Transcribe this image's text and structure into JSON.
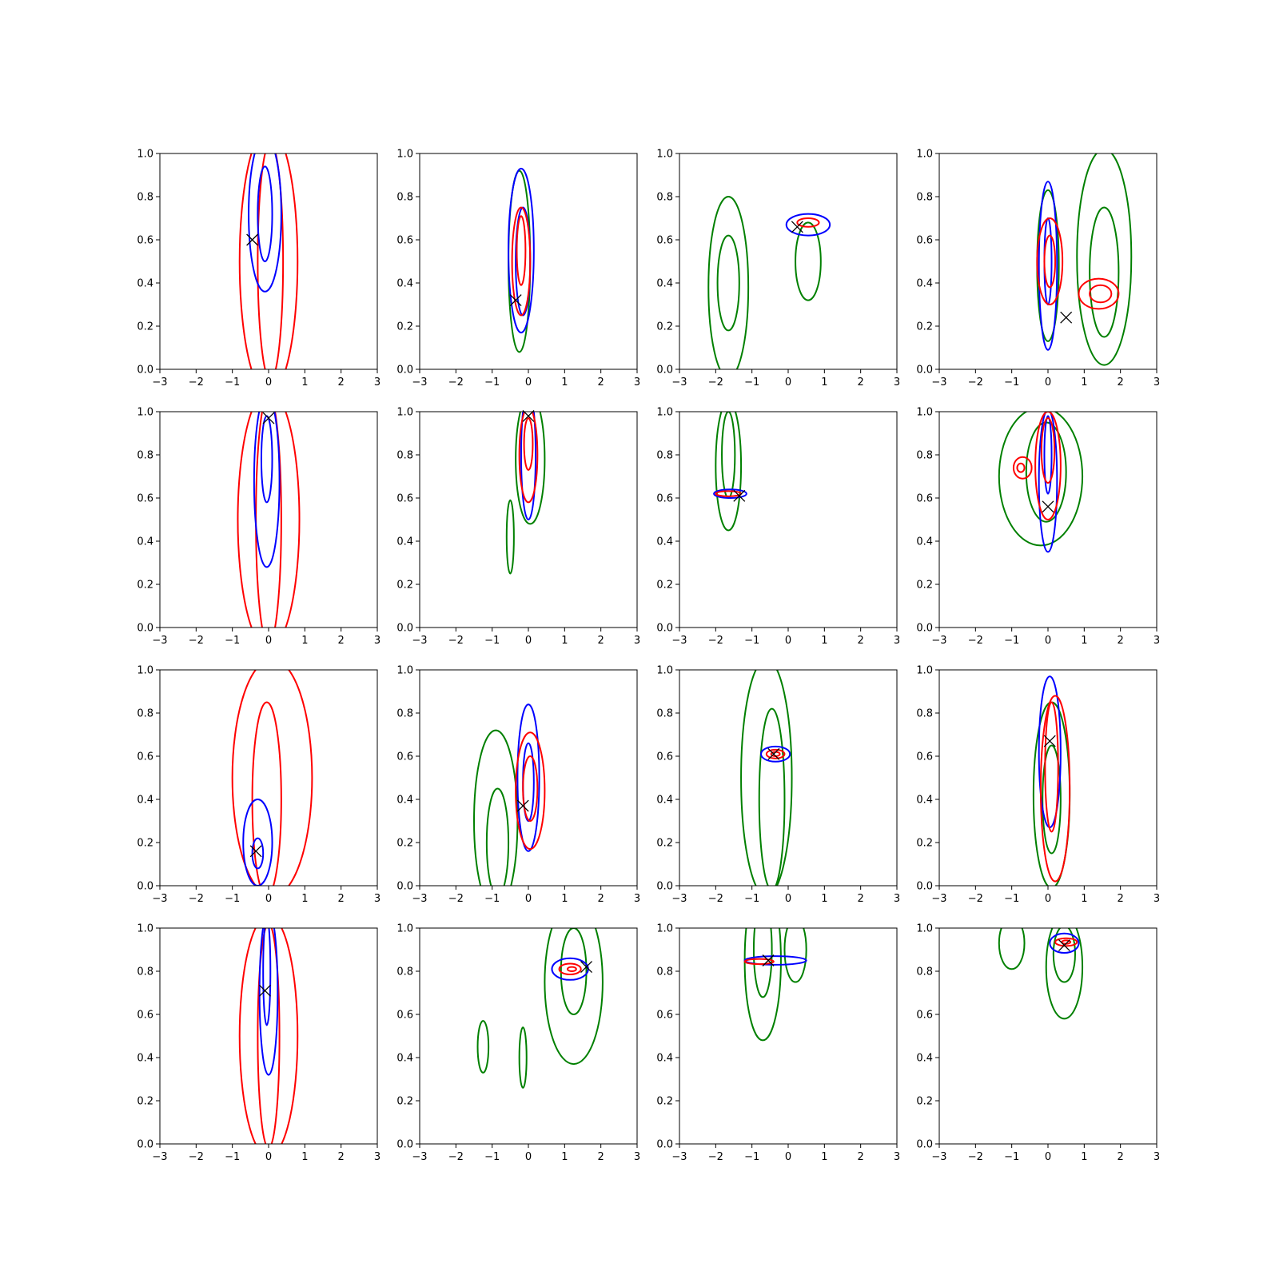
{
  "chart_data": {
    "type": "contour",
    "layout": {
      "rows": 4,
      "cols": 4
    },
    "xlim": [
      -3,
      3
    ],
    "ylim": [
      0,
      1
    ],
    "xticks": [
      -3,
      -2,
      -1,
      0,
      1,
      2,
      3
    ],
    "yticks": [
      0.0,
      0.2,
      0.4,
      0.6,
      0.8,
      1.0
    ],
    "ytick_labels": [
      "0.0",
      "0.2",
      "0.4",
      "0.6",
      "0.8",
      "1.0"
    ],
    "grid": false,
    "colors": {
      "blue": "#0000ff",
      "red": "#ff0000",
      "green": "#008000",
      "marker": "#000000"
    },
    "panels": [
      {
        "marker": [
          -0.45,
          0.6
        ],
        "contours": [
          {
            "color": "red",
            "cx": 0.0,
            "cy": 0.5,
            "rx": 0.8,
            "ry": 0.62
          },
          {
            "color": "red",
            "cx": 0.05,
            "cy": 0.5,
            "rx": 0.35,
            "ry": 0.55
          },
          {
            "color": "blue",
            "cx": -0.1,
            "cy": 0.72,
            "rx": 0.45,
            "ry": 0.36
          },
          {
            "color": "blue",
            "cx": -0.1,
            "cy": 0.72,
            "rx": 0.2,
            "ry": 0.22
          }
        ]
      },
      {
        "marker": [
          -0.35,
          0.32
        ],
        "contours": [
          {
            "color": "green",
            "cx": -0.25,
            "cy": 0.5,
            "rx": 0.3,
            "ry": 0.42
          },
          {
            "color": "blue",
            "cx": -0.2,
            "cy": 0.55,
            "rx": 0.35,
            "ry": 0.38
          },
          {
            "color": "blue",
            "cx": -0.15,
            "cy": 0.5,
            "rx": 0.2,
            "ry": 0.25
          },
          {
            "color": "red",
            "cx": -0.2,
            "cy": 0.5,
            "rx": 0.25,
            "ry": 0.25
          },
          {
            "color": "red",
            "cx": -0.2,
            "cy": 0.55,
            "rx": 0.12,
            "ry": 0.16
          }
        ]
      },
      {
        "marker": [
          0.25,
          0.66
        ],
        "contours": [
          {
            "color": "green",
            "cx": -1.65,
            "cy": 0.38,
            "rx": 0.55,
            "ry": 0.42
          },
          {
            "color": "green",
            "cx": -1.65,
            "cy": 0.4,
            "rx": 0.3,
            "ry": 0.22
          },
          {
            "color": "green",
            "cx": 0.55,
            "cy": 0.5,
            "rx": 0.35,
            "ry": 0.18
          },
          {
            "color": "blue",
            "cx": 0.55,
            "cy": 0.67,
            "rx": 0.6,
            "ry": 0.05
          },
          {
            "color": "red",
            "cx": 0.55,
            "cy": 0.68,
            "rx": 0.3,
            "ry": 0.02
          }
        ]
      },
      {
        "marker": [
          0.5,
          0.24
        ],
        "contours": [
          {
            "color": "green",
            "cx": 1.55,
            "cy": 0.52,
            "rx": 0.75,
            "ry": 0.5
          },
          {
            "color": "green",
            "cx": 1.55,
            "cy": 0.45,
            "rx": 0.4,
            "ry": 0.3
          },
          {
            "color": "green",
            "cx": 0.0,
            "cy": 0.48,
            "rx": 0.3,
            "ry": 0.35
          },
          {
            "color": "blue",
            "cx": 0.0,
            "cy": 0.48,
            "rx": 0.25,
            "ry": 0.39
          },
          {
            "color": "blue",
            "cx": 0.0,
            "cy": 0.5,
            "rx": 0.1,
            "ry": 0.2
          },
          {
            "color": "red",
            "cx": 0.05,
            "cy": 0.5,
            "rx": 0.35,
            "ry": 0.2
          },
          {
            "color": "red",
            "cx": 0.05,
            "cy": 0.5,
            "rx": 0.15,
            "ry": 0.12
          },
          {
            "color": "red",
            "cx": 1.4,
            "cy": 0.35,
            "rx": 0.55,
            "ry": 0.07
          },
          {
            "color": "red",
            "cx": 1.45,
            "cy": 0.35,
            "rx": 0.3,
            "ry": 0.04
          }
        ]
      },
      {
        "marker": [
          0.0,
          0.97
        ],
        "contours": [
          {
            "color": "red",
            "cx": 0.0,
            "cy": 0.5,
            "rx": 0.85,
            "ry": 0.6
          },
          {
            "color": "red",
            "cx": 0.0,
            "cy": 0.5,
            "rx": 0.35,
            "ry": 0.58
          },
          {
            "color": "blue",
            "cx": -0.05,
            "cy": 0.68,
            "rx": 0.35,
            "ry": 0.4
          },
          {
            "color": "blue",
            "cx": -0.05,
            "cy": 0.78,
            "rx": 0.15,
            "ry": 0.2
          }
        ]
      },
      {
        "marker": [
          0.0,
          0.98
        ],
        "contours": [
          {
            "color": "green",
            "cx": 0.05,
            "cy": 0.78,
            "rx": 0.4,
            "ry": 0.3
          },
          {
            "color": "green",
            "cx": -0.5,
            "cy": 0.42,
            "rx": 0.1,
            "ry": 0.17
          },
          {
            "color": "blue",
            "cx": 0.0,
            "cy": 0.8,
            "rx": 0.2,
            "ry": 0.3
          },
          {
            "color": "red",
            "cx": 0.0,
            "cy": 0.8,
            "rx": 0.25,
            "ry": 0.22
          },
          {
            "color": "red",
            "cx": 0.0,
            "cy": 0.85,
            "rx": 0.12,
            "ry": 0.12
          }
        ]
      },
      {
        "marker": [
          -1.35,
          0.61
        ],
        "contours": [
          {
            "color": "green",
            "cx": -1.65,
            "cy": 0.75,
            "rx": 0.35,
            "ry": 0.3
          },
          {
            "color": "green",
            "cx": -1.65,
            "cy": 0.8,
            "rx": 0.18,
            "ry": 0.2
          },
          {
            "color": "blue",
            "cx": -1.6,
            "cy": 0.62,
            "rx": 0.45,
            "ry": 0.02
          },
          {
            "color": "red",
            "cx": -1.65,
            "cy": 0.62,
            "rx": 0.35,
            "ry": 0.012
          }
        ]
      },
      {
        "marker": [
          0.0,
          0.56
        ],
        "contours": [
          {
            "color": "green",
            "cx": -0.2,
            "cy": 0.7,
            "rx": 1.15,
            "ry": 0.32
          },
          {
            "color": "green",
            "cx": -0.05,
            "cy": 0.72,
            "rx": 0.55,
            "ry": 0.23
          },
          {
            "color": "blue",
            "cx": 0.0,
            "cy": 0.68,
            "rx": 0.25,
            "ry": 0.33
          },
          {
            "color": "blue",
            "cx": 0.0,
            "cy": 0.8,
            "rx": 0.1,
            "ry": 0.18
          },
          {
            "color": "red",
            "cx": 0.0,
            "cy": 0.75,
            "rx": 0.35,
            "ry": 0.25
          },
          {
            "color": "red",
            "cx": 0.0,
            "cy": 0.82,
            "rx": 0.18,
            "ry": 0.15
          },
          {
            "color": "red",
            "cx": -0.7,
            "cy": 0.74,
            "rx": 0.25,
            "ry": 0.05
          },
          {
            "color": "red",
            "cx": -0.75,
            "cy": 0.74,
            "rx": 0.1,
            "ry": 0.02
          }
        ]
      },
      {
        "marker": [
          -0.35,
          0.16
        ],
        "contours": [
          {
            "color": "red",
            "cx": 0.1,
            "cy": 0.5,
            "rx": 1.1,
            "ry": 0.55
          },
          {
            "color": "red",
            "cx": -0.05,
            "cy": 0.4,
            "rx": 0.4,
            "ry": 0.45
          },
          {
            "color": "blue",
            "cx": -0.3,
            "cy": 0.2,
            "rx": 0.4,
            "ry": 0.2
          },
          {
            "color": "blue",
            "cx": -0.3,
            "cy": 0.15,
            "rx": 0.15,
            "ry": 0.07
          }
        ]
      },
      {
        "marker": [
          -0.15,
          0.37
        ],
        "contours": [
          {
            "color": "green",
            "cx": -0.9,
            "cy": 0.3,
            "rx": 0.6,
            "ry": 0.42
          },
          {
            "color": "green",
            "cx": -0.85,
            "cy": 0.2,
            "rx": 0.3,
            "ry": 0.25
          },
          {
            "color": "blue",
            "cx": 0.0,
            "cy": 0.5,
            "rx": 0.3,
            "ry": 0.34
          },
          {
            "color": "blue",
            "cx": 0.0,
            "cy": 0.48,
            "rx": 0.15,
            "ry": 0.18
          },
          {
            "color": "red",
            "cx": 0.05,
            "cy": 0.44,
            "rx": 0.4,
            "ry": 0.27
          },
          {
            "color": "red",
            "cx": 0.05,
            "cy": 0.45,
            "rx": 0.2,
            "ry": 0.15
          }
        ]
      },
      {
        "marker": [
          -0.4,
          0.61
        ],
        "contours": [
          {
            "color": "green",
            "cx": -0.6,
            "cy": 0.5,
            "rx": 0.7,
            "ry": 0.55
          },
          {
            "color": "green",
            "cx": -0.45,
            "cy": 0.4,
            "rx": 0.35,
            "ry": 0.42
          },
          {
            "color": "blue",
            "cx": -0.35,
            "cy": 0.61,
            "rx": 0.4,
            "ry": 0.035
          },
          {
            "color": "red",
            "cx": -0.35,
            "cy": 0.61,
            "rx": 0.25,
            "ry": 0.02
          },
          {
            "color": "red",
            "cx": -0.35,
            "cy": 0.61,
            "rx": 0.12,
            "ry": 0.01
          }
        ]
      },
      {
        "marker": [
          0.05,
          0.67
        ],
        "contours": [
          {
            "color": "green",
            "cx": 0.1,
            "cy": 0.42,
            "rx": 0.5,
            "ry": 0.43
          },
          {
            "color": "green",
            "cx": 0.1,
            "cy": 0.4,
            "rx": 0.25,
            "ry": 0.25
          },
          {
            "color": "blue",
            "cx": 0.05,
            "cy": 0.62,
            "rx": 0.3,
            "ry": 0.35
          },
          {
            "color": "red",
            "cx": 0.2,
            "cy": 0.45,
            "rx": 0.4,
            "ry": 0.43
          },
          {
            "color": "red",
            "cx": 0.1,
            "cy": 0.55,
            "rx": 0.18,
            "ry": 0.3
          }
        ]
      },
      {
        "marker": [
          -0.1,
          0.71
        ],
        "contours": [
          {
            "color": "red",
            "cx": 0.0,
            "cy": 0.5,
            "rx": 0.8,
            "ry": 0.56
          },
          {
            "color": "red",
            "cx": 0.0,
            "cy": 0.5,
            "rx": 0.3,
            "ry": 0.52
          },
          {
            "color": "blue",
            "cx": 0.0,
            "cy": 0.7,
            "rx": 0.25,
            "ry": 0.38
          },
          {
            "color": "blue",
            "cx": -0.05,
            "cy": 0.8,
            "rx": 0.1,
            "ry": 0.25
          }
        ]
      },
      {
        "marker": [
          1.6,
          0.82
        ],
        "contours": [
          {
            "color": "green",
            "cx": 1.25,
            "cy": 0.75,
            "rx": 0.8,
            "ry": 0.38
          },
          {
            "color": "green",
            "cx": 1.25,
            "cy": 0.8,
            "rx": 0.35,
            "ry": 0.2
          },
          {
            "color": "green",
            "cx": -1.25,
            "cy": 0.45,
            "rx": 0.15,
            "ry": 0.12
          },
          {
            "color": "green",
            "cx": -0.15,
            "cy": 0.4,
            "rx": 0.1,
            "ry": 0.14
          },
          {
            "color": "blue",
            "cx": 1.15,
            "cy": 0.81,
            "rx": 0.5,
            "ry": 0.05
          },
          {
            "color": "red",
            "cx": 1.15,
            "cy": 0.81,
            "rx": 0.3,
            "ry": 0.025
          },
          {
            "color": "red",
            "cx": 1.2,
            "cy": 0.81,
            "rx": 0.12,
            "ry": 0.01
          }
        ]
      },
      {
        "marker": [
          -0.55,
          0.85
        ],
        "contours": [
          {
            "color": "green",
            "cx": -0.7,
            "cy": 0.85,
            "rx": 0.5,
            "ry": 0.37
          },
          {
            "color": "green",
            "cx": -0.7,
            "cy": 0.9,
            "rx": 0.25,
            "ry": 0.22
          },
          {
            "color": "green",
            "cx": 0.2,
            "cy": 0.9,
            "rx": 0.3,
            "ry": 0.15
          },
          {
            "color": "blue",
            "cx": -0.35,
            "cy": 0.85,
            "rx": 0.85,
            "ry": 0.02
          },
          {
            "color": "red",
            "cx": -0.8,
            "cy": 0.845,
            "rx": 0.4,
            "ry": 0.012
          }
        ]
      },
      {
        "marker": [
          0.45,
          0.92
        ],
        "contours": [
          {
            "color": "green",
            "cx": 0.45,
            "cy": 0.82,
            "rx": 0.5,
            "ry": 0.24
          },
          {
            "color": "green",
            "cx": 0.45,
            "cy": 0.88,
            "rx": 0.3,
            "ry": 0.13
          },
          {
            "color": "green",
            "cx": -1.0,
            "cy": 0.93,
            "rx": 0.35,
            "ry": 0.12
          },
          {
            "color": "blue",
            "cx": 0.45,
            "cy": 0.93,
            "rx": 0.4,
            "ry": 0.045
          },
          {
            "color": "red",
            "cx": 0.5,
            "cy": 0.935,
            "rx": 0.3,
            "ry": 0.018
          },
          {
            "color": "red",
            "cx": 0.5,
            "cy": 0.935,
            "rx": 0.12,
            "ry": 0.008
          }
        ]
      }
    ]
  }
}
